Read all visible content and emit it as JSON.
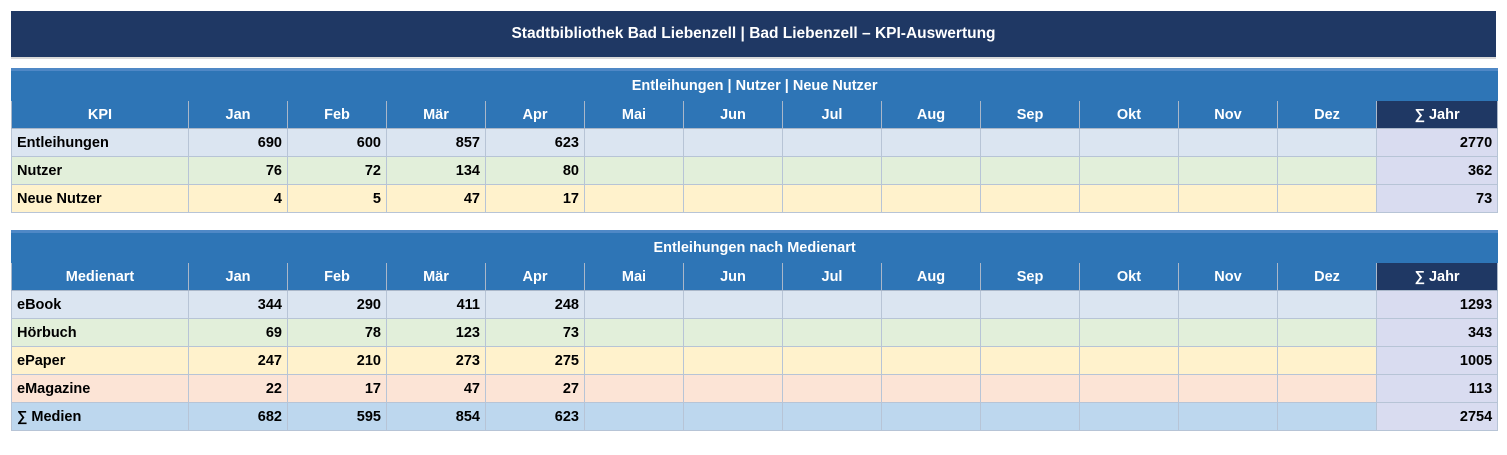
{
  "title": "Stadtbibliothek Bad Liebenzell  |  Bad Liebenzell  – KPI-Auswertung",
  "months": [
    "Jan",
    "Feb",
    "Mär",
    "Apr",
    "Mai",
    "Jun",
    "Jul",
    "Aug",
    "Sep",
    "Okt",
    "Nov",
    "Dez"
  ],
  "sum_label": "∑ Jahr",
  "table1": {
    "heading": "Entleihungen | Nutzer | Neue Nutzer",
    "first_col": "KPI",
    "rows": [
      {
        "label": "Entleihungen",
        "values": [
          "690",
          "600",
          "857",
          "623",
          "",
          "",
          "",
          "",
          "",
          "",
          "",
          ""
        ],
        "sum": "2770"
      },
      {
        "label": "Nutzer",
        "values": [
          "76",
          "72",
          "134",
          "80",
          "",
          "",
          "",
          "",
          "",
          "",
          "",
          ""
        ],
        "sum": "362"
      },
      {
        "label": "Neue Nutzer",
        "values": [
          "4",
          "5",
          "47",
          "17",
          "",
          "",
          "",
          "",
          "",
          "",
          "",
          ""
        ],
        "sum": "73"
      }
    ]
  },
  "table2": {
    "heading": "Entleihungen nach Medienart",
    "first_col": "Medienart",
    "rows": [
      {
        "label": "eBook",
        "values": [
          "344",
          "290",
          "411",
          "248",
          "",
          "",
          "",
          "",
          "",
          "",
          "",
          ""
        ],
        "sum": "1293"
      },
      {
        "label": "Hörbuch",
        "values": [
          "69",
          "78",
          "123",
          "73",
          "",
          "",
          "",
          "",
          "",
          "",
          "",
          ""
        ],
        "sum": "343"
      },
      {
        "label": "ePaper",
        "values": [
          "247",
          "210",
          "273",
          "275",
          "",
          "",
          "",
          "",
          "",
          "",
          "",
          ""
        ],
        "sum": "1005"
      },
      {
        "label": "eMagazine",
        "values": [
          "22",
          "17",
          "47",
          "27",
          "",
          "",
          "",
          "",
          "",
          "",
          "",
          ""
        ],
        "sum": "113"
      },
      {
        "label": "∑ Medien",
        "values": [
          "682",
          "595",
          "854",
          "623",
          "",
          "",
          "",
          "",
          "",
          "",
          "",
          ""
        ],
        "sum": "2754"
      }
    ]
  },
  "colors": {
    "title_bg": "#1f3864",
    "header_bg": "#2e75b6",
    "sum_header_bg": "#1f3864",
    "row_blue": "#dbe5f1",
    "row_green": "#e2efda",
    "row_yellow": "#fff2cc",
    "row_pink": "#fce4d6",
    "row_total": "#bdd7ee",
    "sum_col": "#d9dcf0"
  }
}
